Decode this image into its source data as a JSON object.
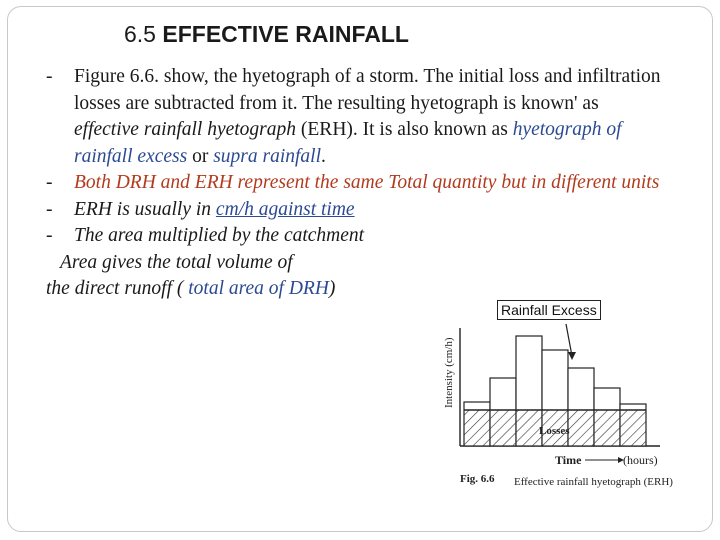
{
  "slide": {
    "title_number": "6.5",
    "title_text": "EFFECTIVE RAINFALL"
  },
  "bullets": {
    "b1_text": "Figure 6.6. show, the hyetograph of a storm. The initial loss and infiltration losses are subtracted from it. The resulting hyetograph is known' as ",
    "b1_em1": "effective rainfall hyetograph",
    "b1_text2": " (ERH). It is also known as ",
    "b1_em2": "hyetograph of rainfall excess",
    "b1_or": " or ",
    "b1_em3": "supra rainfall",
    "b1_end": ".",
    "b2_text": "Both DRH and ERH represent the same Total quantity but in different units",
    "b3_text": "ERH is usually in ",
    "b3_link": "cm/h against time",
    "b4_text": "The area multiplied by the catchment",
    "b4_line2": "Area gives the total volume of",
    "b4_line3_a": "the direct runoff ( ",
    "b4_line3_b": "total area of DRH",
    "b4_line3_c": ")"
  },
  "callout": "Rainfall Excess",
  "figure": {
    "ylabel": "Intensity (cm/h)",
    "losses_label": "Losses",
    "time_label": "Time",
    "hours_label": "(hours)",
    "caption_fig": "Fig. 6.6",
    "caption_text": "Effective rainfall hyetograph (ERH)"
  }
}
